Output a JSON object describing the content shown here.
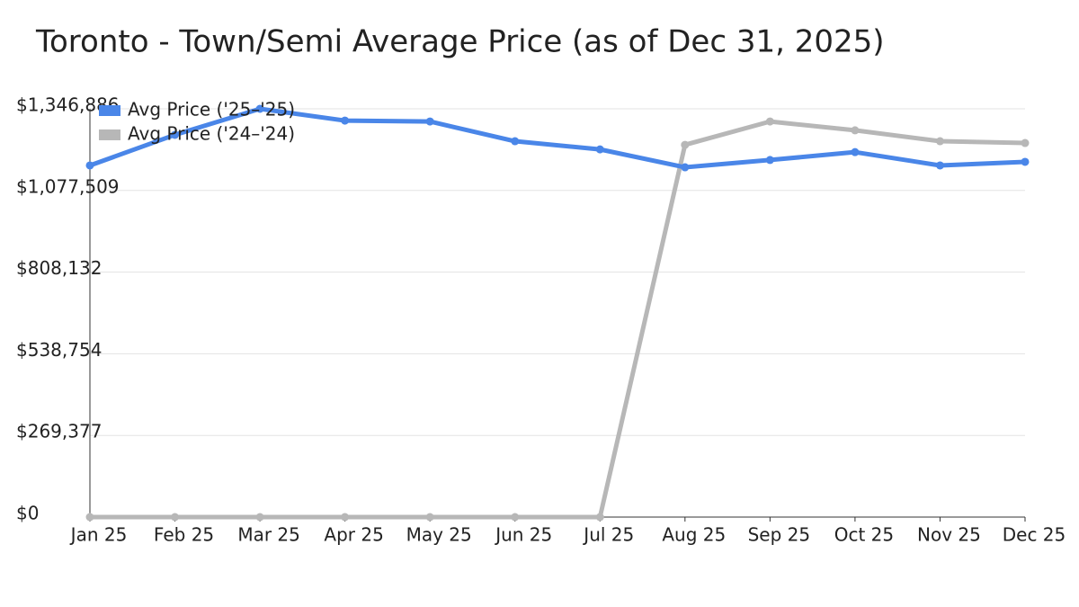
{
  "chart_data": {
    "type": "line",
    "title": "Toronto - Town/Semi Average Price (as of Dec 31, 2025)",
    "categories": [
      "Jan 25",
      "Feb 25",
      "Mar 25",
      "Apr 25",
      "May 25",
      "Jun 25",
      "Jul 25",
      "Aug 25",
      "Sep 25",
      "Oct 25",
      "Nov 25",
      "Dec 25"
    ],
    "series": [
      {
        "name": "Avg Price ('25–'25)",
        "color": "#4a86e8",
        "values": [
          1160000,
          1261000,
          1346886,
          1308000,
          1305000,
          1240000,
          1213000,
          1154000,
          1178000,
          1204000,
          1160000,
          1172000
        ]
      },
      {
        "name": "Avg Price ('24–'24)",
        "color": "#b7b7b7",
        "values": [
          0,
          0,
          0,
          0,
          0,
          0,
          0,
          1228000,
          1305000,
          1276000,
          1240000,
          1234000
        ]
      }
    ],
    "ylim": [
      0,
      1346886
    ],
    "yticks": [
      {
        "value": 0,
        "label": "$0"
      },
      {
        "value": 269377,
        "label": "$269,377"
      },
      {
        "value": 538754,
        "label": "$538,754"
      },
      {
        "value": 808132,
        "label": "$808,132"
      },
      {
        "value": 1077509,
        "label": "$1,077,509"
      },
      {
        "value": 1346886,
        "label": "$1,346,886"
      }
    ],
    "grid": true,
    "legend": "top-left"
  }
}
